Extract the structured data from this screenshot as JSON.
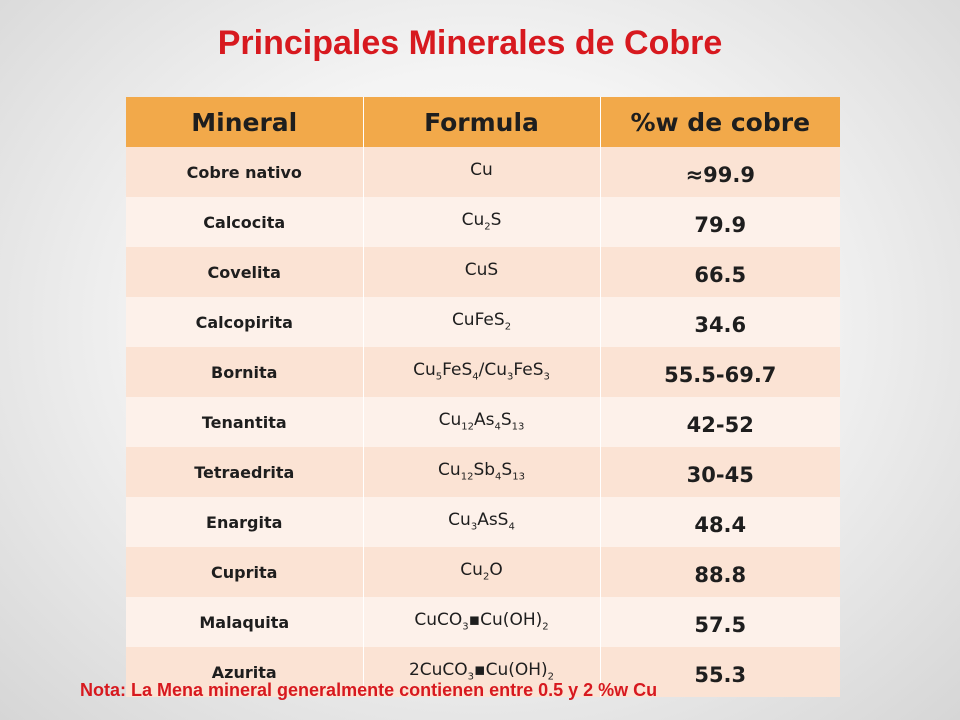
{
  "title": "Principales Minerales de Cobre",
  "table": {
    "headers": [
      "Mineral",
      "Formula",
      "%w de cobre"
    ],
    "rows": [
      {
        "mineral": "Cobre nativo",
        "formula": [
          [
            "Cu",
            ""
          ]
        ],
        "percent": "≈99.9"
      },
      {
        "mineral": "Calcocita",
        "formula": [
          [
            "Cu",
            "2"
          ],
          [
            "S",
            ""
          ]
        ],
        "percent": "79.9"
      },
      {
        "mineral": "Covelita",
        "formula": [
          [
            "CuS",
            ""
          ]
        ],
        "percent": "66.5"
      },
      {
        "mineral": "Calcopirita",
        "formula": [
          [
            "CuFeS",
            "2"
          ]
        ],
        "percent": "34.6"
      },
      {
        "mineral": "Bornita",
        "formula": [
          [
            "Cu",
            "5"
          ],
          [
            "FeS",
            "4"
          ],
          [
            "/Cu",
            "3"
          ],
          [
            "FeS",
            "3"
          ]
        ],
        "percent": "55.5-69.7"
      },
      {
        "mineral": "Tenantita",
        "formula": [
          [
            "Cu",
            "12"
          ],
          [
            "As",
            "4"
          ],
          [
            "S",
            "13"
          ]
        ],
        "percent": "42-52"
      },
      {
        "mineral": "Tetraedrita",
        "formula": [
          [
            "Cu",
            "12"
          ],
          [
            "Sb",
            "4"
          ],
          [
            "S",
            "13"
          ]
        ],
        "percent": "30-45"
      },
      {
        "mineral": "Enargita",
        "formula": [
          [
            "Cu",
            "3"
          ],
          [
            "AsS",
            "4"
          ]
        ],
        "percent": "48.4"
      },
      {
        "mineral": "Cuprita",
        "formula": [
          [
            "Cu",
            "2"
          ],
          [
            "O",
            ""
          ]
        ],
        "percent": "88.8"
      },
      {
        "mineral": "Malaquita",
        "formula": [
          [
            "CuCO",
            "3"
          ],
          [
            "▪Cu(OH)",
            "2"
          ]
        ],
        "percent": "57.5"
      },
      {
        "mineral": "Azurita",
        "formula": [
          [
            "2CuCO",
            "3"
          ],
          [
            "▪Cu(OH)",
            "2"
          ]
        ],
        "percent": "55.3"
      }
    ]
  },
  "note": "Nota: La Mena mineral generalmente contienen entre 0.5 y 2 %w Cu",
  "colors": {
    "title": "#d7191f",
    "header_bg": "#f2a94a",
    "row_odd": "#fbe3d4",
    "row_even": "#fdf1ea"
  }
}
